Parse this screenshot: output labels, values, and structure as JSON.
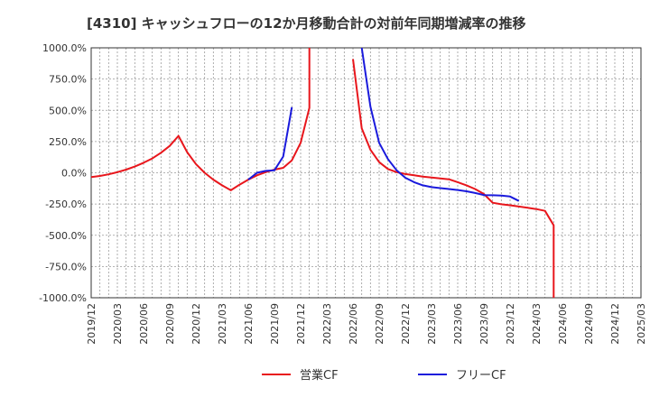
{
  "chart_data": {
    "type": "line",
    "title": "[4310]  キャッシュフローの12か月移動合計の対前年同期増減率の推移",
    "xlabel": "",
    "ylabel": "",
    "ylim": [
      -1000,
      1000
    ],
    "y_ticks": [
      1000,
      750,
      500,
      250,
      0,
      -250,
      -500,
      -750,
      -1000
    ],
    "y_tick_labels": [
      "1000.0%",
      "750.0%",
      "500.0%",
      "250.0%",
      "0.0%",
      "-250.0%",
      "-500.0%",
      "-750.0%",
      "-1000.0%"
    ],
    "x_range": [
      "2019/12",
      "2025/03"
    ],
    "x_tick_labels": [
      "2019/12",
      "2020/03",
      "2020/06",
      "2020/09",
      "2020/12",
      "2021/03",
      "2021/06",
      "2021/09",
      "2021/12",
      "2022/03",
      "2022/06",
      "2022/09",
      "2022/12",
      "2023/03",
      "2023/06",
      "2023/09",
      "2023/12",
      "2024/03",
      "2024/06",
      "2024/09",
      "2024/12",
      "2025/03"
    ],
    "grid": true,
    "legend_position": "bottom",
    "series": [
      {
        "name": "営業CF",
        "color": "#e8161c",
        "points": [
          {
            "x": "2019/12",
            "y": -35
          },
          {
            "x": "2020/01",
            "y": -25
          },
          {
            "x": "2020/02",
            "y": -12
          },
          {
            "x": "2020/03",
            "y": 5
          },
          {
            "x": "2020/04",
            "y": 25
          },
          {
            "x": "2020/05",
            "y": 50
          },
          {
            "x": "2020/06",
            "y": 80
          },
          {
            "x": "2020/07",
            "y": 115
          },
          {
            "x": "2020/08",
            "y": 160
          },
          {
            "x": "2020/09",
            "y": 215
          },
          {
            "x": "2020/10",
            "y": 295
          },
          {
            "x": "2020/11",
            "y": 165
          },
          {
            "x": "2020/12",
            "y": 70
          },
          {
            "x": "2021/01",
            "y": 0
          },
          {
            "x": "2021/02",
            "y": -55
          },
          {
            "x": "2021/03",
            "y": -100
          },
          {
            "x": "2021/04",
            "y": -140
          },
          {
            "x": "2021/05",
            "y": -95
          },
          {
            "x": "2021/06",
            "y": -55
          },
          {
            "x": "2021/07",
            "y": -20
          },
          {
            "x": "2021/08",
            "y": 5
          },
          {
            "x": "2021/09",
            "y": 25
          },
          {
            "x": "2021/10",
            "y": 40
          },
          {
            "x": "2021/11",
            "y": 100
          },
          {
            "x": "2021/12",
            "y": 240
          },
          {
            "x": "2022/01",
            "y": 520
          },
          {
            "x": "2022/01",
            "y": 1000
          },
          {
            "x": null,
            "y": null
          },
          {
            "x": "2022/06",
            "y": 910
          },
          {
            "x": "2022/07",
            "y": 355
          },
          {
            "x": "2022/08",
            "y": 185
          },
          {
            "x": "2022/09",
            "y": 85
          },
          {
            "x": "2022/10",
            "y": 30
          },
          {
            "x": "2022/11",
            "y": 5
          },
          {
            "x": "2022/12",
            "y": -10
          },
          {
            "x": "2023/01",
            "y": -20
          },
          {
            "x": "2023/02",
            "y": -30
          },
          {
            "x": "2023/03",
            "y": -38
          },
          {
            "x": "2023/04",
            "y": -45
          },
          {
            "x": "2023/05",
            "y": -52
          },
          {
            "x": "2023/06",
            "y": -75
          },
          {
            "x": "2023/07",
            "y": -100
          },
          {
            "x": "2023/08",
            "y": -130
          },
          {
            "x": "2023/09",
            "y": -170
          },
          {
            "x": "2023/10",
            "y": -240
          },
          {
            "x": "2023/11",
            "y": -252
          },
          {
            "x": "2023/12",
            "y": -260
          },
          {
            "x": "2024/01",
            "y": -270
          },
          {
            "x": "2024/02",
            "y": -280
          },
          {
            "x": "2024/03",
            "y": -290
          },
          {
            "x": "2024/04",
            "y": -305
          },
          {
            "x": "2024/05",
            "y": -420
          },
          {
            "x": "2024/05",
            "y": -1000
          }
        ]
      },
      {
        "name": "フリーCF",
        "color": "#1a1adc",
        "points": [
          {
            "x": "2021/06",
            "y": -55
          },
          {
            "x": "2021/07",
            "y": 0
          },
          {
            "x": "2021/08",
            "y": 15
          },
          {
            "x": "2021/09",
            "y": 20
          },
          {
            "x": "2021/10",
            "y": 130
          },
          {
            "x": "2021/11",
            "y": 525
          },
          {
            "x": null,
            "y": null
          },
          {
            "x": "2022/07",
            "y": 1000
          },
          {
            "x": "2022/08",
            "y": 530
          },
          {
            "x": "2022/09",
            "y": 240
          },
          {
            "x": "2022/10",
            "y": 110
          },
          {
            "x": "2022/11",
            "y": 20
          },
          {
            "x": "2022/12",
            "y": -40
          },
          {
            "x": "2023/01",
            "y": -75
          },
          {
            "x": "2023/02",
            "y": -100
          },
          {
            "x": "2023/03",
            "y": -115
          },
          {
            "x": "2023/04",
            "y": -123
          },
          {
            "x": "2023/05",
            "y": -130
          },
          {
            "x": "2023/06",
            "y": -138
          },
          {
            "x": "2023/07",
            "y": -148
          },
          {
            "x": "2023/08",
            "y": -162
          },
          {
            "x": "2023/09",
            "y": -178
          },
          {
            "x": "2023/10",
            "y": -180
          },
          {
            "x": "2023/11",
            "y": -183
          },
          {
            "x": "2023/12",
            "y": -190
          },
          {
            "x": "2024/01",
            "y": -225
          }
        ]
      }
    ]
  }
}
